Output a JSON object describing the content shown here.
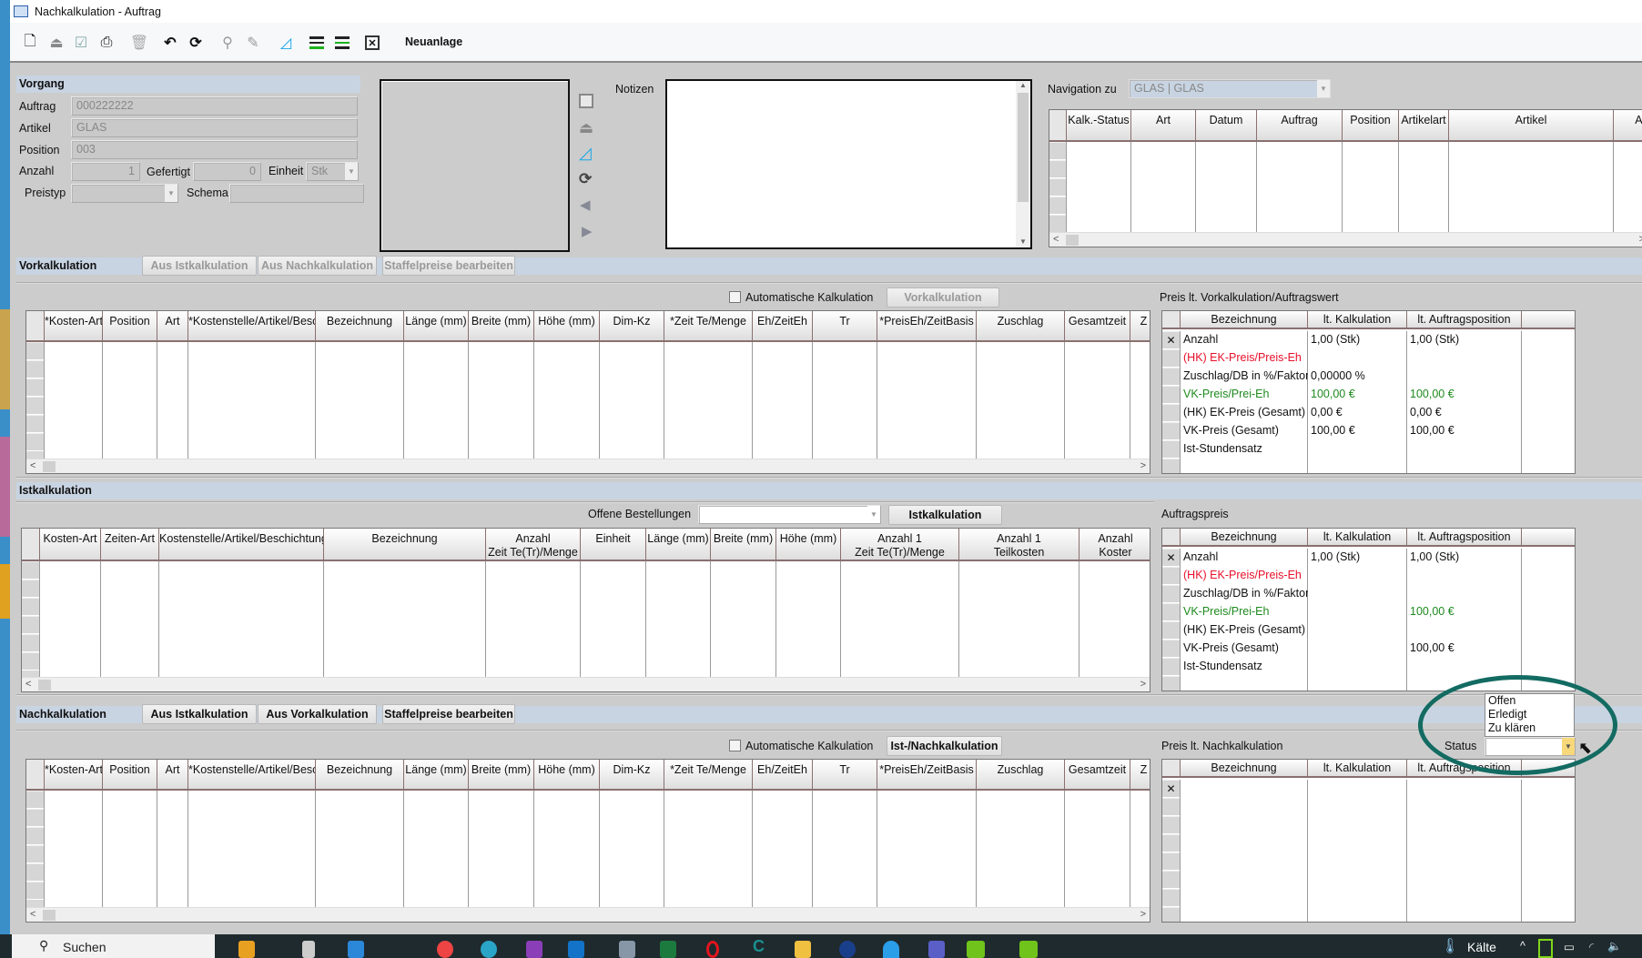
{
  "window": {
    "title": "Nachkalkulation - Auftrag"
  },
  "toolbar": {
    "icons": [
      "new-document-icon",
      "eject-icon",
      "checkbox-icon",
      "print-icon",
      "trash-icon",
      "undo-icon",
      "refresh-icon",
      "search-icon",
      "edit-icon",
      "triangle-ruler-icon",
      "align-bottom-green-icon",
      "align-middle-green-icon",
      "close-box-icon"
    ],
    "neuanlage_label": "Neuanlage"
  },
  "vorgang": {
    "title": "Vorgang",
    "auftrag_label": "Auftrag",
    "auftrag_value": "000222222",
    "artikel_label": "Artikel",
    "artikel_value": "GLAS",
    "position_label": "Position",
    "position_value": "003",
    "anzahl_label": "Anzahl",
    "anzahl_value": "1",
    "gefertigt_label": "Gefertigt",
    "gefertigt_value": "0",
    "einheit_label": "Einheit",
    "einheit_value": "Stk",
    "preistyp_label": "Preistyp",
    "preistyp_value": "",
    "schema_label": "Schema",
    "schema_value": ""
  },
  "notizen": {
    "label": "Notizen",
    "value": ""
  },
  "navigation": {
    "label": "Navigation zu",
    "value": "GLAS | GLAS",
    "columns": [
      "Kalk.-Status",
      "Art",
      "Datum",
      "Auftrag",
      "Position",
      "Artikelart",
      "Artikel",
      "Ar"
    ]
  },
  "vorkalkulation": {
    "title": "Vorkalkulation",
    "buttons": [
      "Aus Istkalkulation",
      "Aus Nachkalkulation",
      "Staffelpreise bearbeiten"
    ],
    "auto_label": "Automatische Kalkulation",
    "auto_checked": false,
    "action_button": "Vorkalkulation",
    "columns": [
      "*Kosten-Art",
      "Position",
      "Art",
      "*Kostenstelle/Artikel/Besc",
      "Bezeichnung",
      "Länge (mm)",
      "Breite (mm)",
      "Höhe (mm)",
      "Dim-Kz",
      "*Zeit Te/Menge",
      "Eh/ZeitEh",
      "Tr",
      "*PreisEh/ZeitBasis",
      "Zuschlag",
      "Gesamtzeit",
      "Z"
    ],
    "price_title": "Preis lt. Vorkalkulation/Auftragswert",
    "price_columns": [
      "Bezeichnung",
      "lt. Kalkulation",
      "lt. Auftragsposition",
      ""
    ],
    "price_rows": [
      {
        "label": "Anzahl",
        "kalk": "1,00 (Stk)",
        "auftrag": "1,00 (Stk)",
        "color": "#111111"
      },
      {
        "label": "(HK) EK-Preis/Preis-Eh",
        "kalk": "",
        "auftrag": "",
        "color": "#e8102a"
      },
      {
        "label": "Zuschlag/DB in %/Faktor",
        "kalk": "0,00000 %",
        "auftrag": "",
        "color": "#111111"
      },
      {
        "label": "VK-Preis/Prei-Eh",
        "kalk": "100,00 €",
        "auftrag": "100,00 €",
        "color": "#1e8a1e"
      },
      {
        "label": "(HK) EK-Preis (Gesamt)",
        "kalk": "0,00 €",
        "auftrag": "0,00 €",
        "color": "#111111"
      },
      {
        "label": "VK-Preis (Gesamt)",
        "kalk": "100,00 €",
        "auftrag": "100,00 €",
        "color": "#111111"
      },
      {
        "label": "Ist-Stundensatz",
        "kalk": "",
        "auftrag": "",
        "color": "#111111"
      }
    ]
  },
  "istkalkulation": {
    "title": "Istkalkulation",
    "offene_label": "Offene Bestellungen",
    "offene_value": "",
    "action_button": "Istkalkulation",
    "columns": [
      "Kosten-Art",
      "Zeiten-Art",
      "Kostenstelle/Artikel/Beschichtung",
      "Bezeichnung",
      "Anzahl\nZeit Te(Tr)/Menge",
      "Einheit",
      "Länge (mm)",
      "Breite (mm)",
      "Höhe (mm)",
      "Anzahl 1\nZeit Te(Tr)/Menge",
      "Anzahl 1\nTeilkosten",
      "Anzahl\nKoster"
    ],
    "price_title": "Auftragspreis",
    "price_columns": [
      "Bezeichnung",
      "lt. Kalkulation",
      "lt. Auftragsposition",
      ""
    ],
    "price_rows": [
      {
        "label": "Anzahl",
        "kalk": "1,00 (Stk)",
        "auftrag": "1,00 (Stk)",
        "color": "#111111"
      },
      {
        "label": "(HK) EK-Preis/Preis-Eh",
        "kalk": "",
        "auftrag": "",
        "color": "#e8102a"
      },
      {
        "label": "Zuschlag/DB in %/Faktor",
        "kalk": "",
        "auftrag": "",
        "color": "#111111"
      },
      {
        "label": "VK-Preis/Prei-Eh",
        "kalk": "",
        "auftrag": "100,00 €",
        "color": "#1e8a1e"
      },
      {
        "label": "(HK) EK-Preis (Gesamt)",
        "kalk": "",
        "auftrag": "",
        "color": "#111111"
      },
      {
        "label": "VK-Preis (Gesamt)",
        "kalk": "",
        "auftrag": "100,00 €",
        "color": "#111111"
      },
      {
        "label": "Ist-Stundensatz",
        "kalk": "",
        "auftrag": "",
        "color": "#111111"
      }
    ]
  },
  "nachkalkulation": {
    "title": "Nachkalkulation",
    "buttons": [
      "Aus Istkalkulation",
      "Aus Vorkalkulation",
      "Staffelpreise bearbeiten"
    ],
    "auto_label": "Automatische Kalkulation",
    "auto_checked": false,
    "action_button": "Ist-/Nachkalkulation",
    "columns": [
      "*Kosten-Art",
      "Position",
      "Art",
      "*Kostenstelle/Artikel/Besc",
      "Bezeichnung",
      "Länge (mm)",
      "Breite (mm)",
      "Höhe (mm)",
      "Dim-Kz",
      "*Zeit Te/Menge",
      "Eh/ZeitEh",
      "Tr",
      "*PreisEh/ZeitBasis",
      "Zuschlag",
      "Gesamtzeit",
      "Z"
    ],
    "price_title": "Preis lt. Nachkalkulation",
    "price_columns": [
      "Bezeichnung",
      "lt. Kalkulation",
      "lt. Auftragsposition",
      ""
    ],
    "price_rows": [],
    "status_label": "Status",
    "status_value": "",
    "status_options": [
      "Offen",
      "Erledigt",
      "Zu klären"
    ],
    "highlight_color": "#136b62"
  },
  "taskbar": {
    "search_label": "Suchen",
    "weather_label": "Kälte"
  }
}
